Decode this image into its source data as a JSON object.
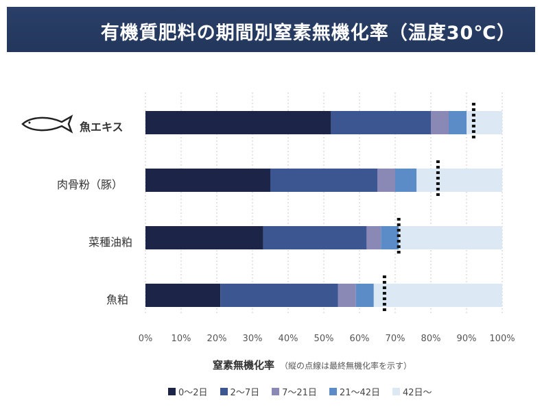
{
  "header": {
    "title": "有機質肥料の期間別窒素無機化率（温度30℃）"
  },
  "colors": {
    "header_bg": "#24395e",
    "segment_colors": [
      "#1c2447",
      "#3b5690",
      "#8a88b5",
      "#5b8cc7",
      "#dce8f3"
    ]
  },
  "icons": {
    "fish": "fish-outline-icon"
  },
  "chart_data": {
    "type": "bar",
    "orientation": "horizontal",
    "stacked": true,
    "categories": [
      "魚エキス",
      "肉骨粉（豚）",
      "菜種油粕",
      "魚粕"
    ],
    "series": [
      {
        "name": "0〜2日",
        "values": [
          52,
          35,
          33,
          21
        ]
      },
      {
        "name": "2〜7日",
        "values": [
          28,
          30,
          29,
          33
        ]
      },
      {
        "name": "7〜21日",
        "values": [
          5,
          5,
          4,
          5
        ]
      },
      {
        "name": "21〜42日",
        "values": [
          5,
          6,
          5,
          5
        ]
      },
      {
        "name": "42日〜",
        "values": [
          10,
          24,
          29,
          36
        ]
      }
    ],
    "final_rate_markers": [
      92,
      82,
      71,
      67
    ],
    "xticks": [
      "0%",
      "10%",
      "20%",
      "30%",
      "40%",
      "50%",
      "60%",
      "70%",
      "80%",
      "90%",
      "100%"
    ],
    "xlim": [
      0,
      100
    ],
    "xlabel": "窒素無機化率",
    "xlabel_note": "（縦の点線は最終無機化率を示す）",
    "legend_position": "bottom",
    "grid": true
  }
}
